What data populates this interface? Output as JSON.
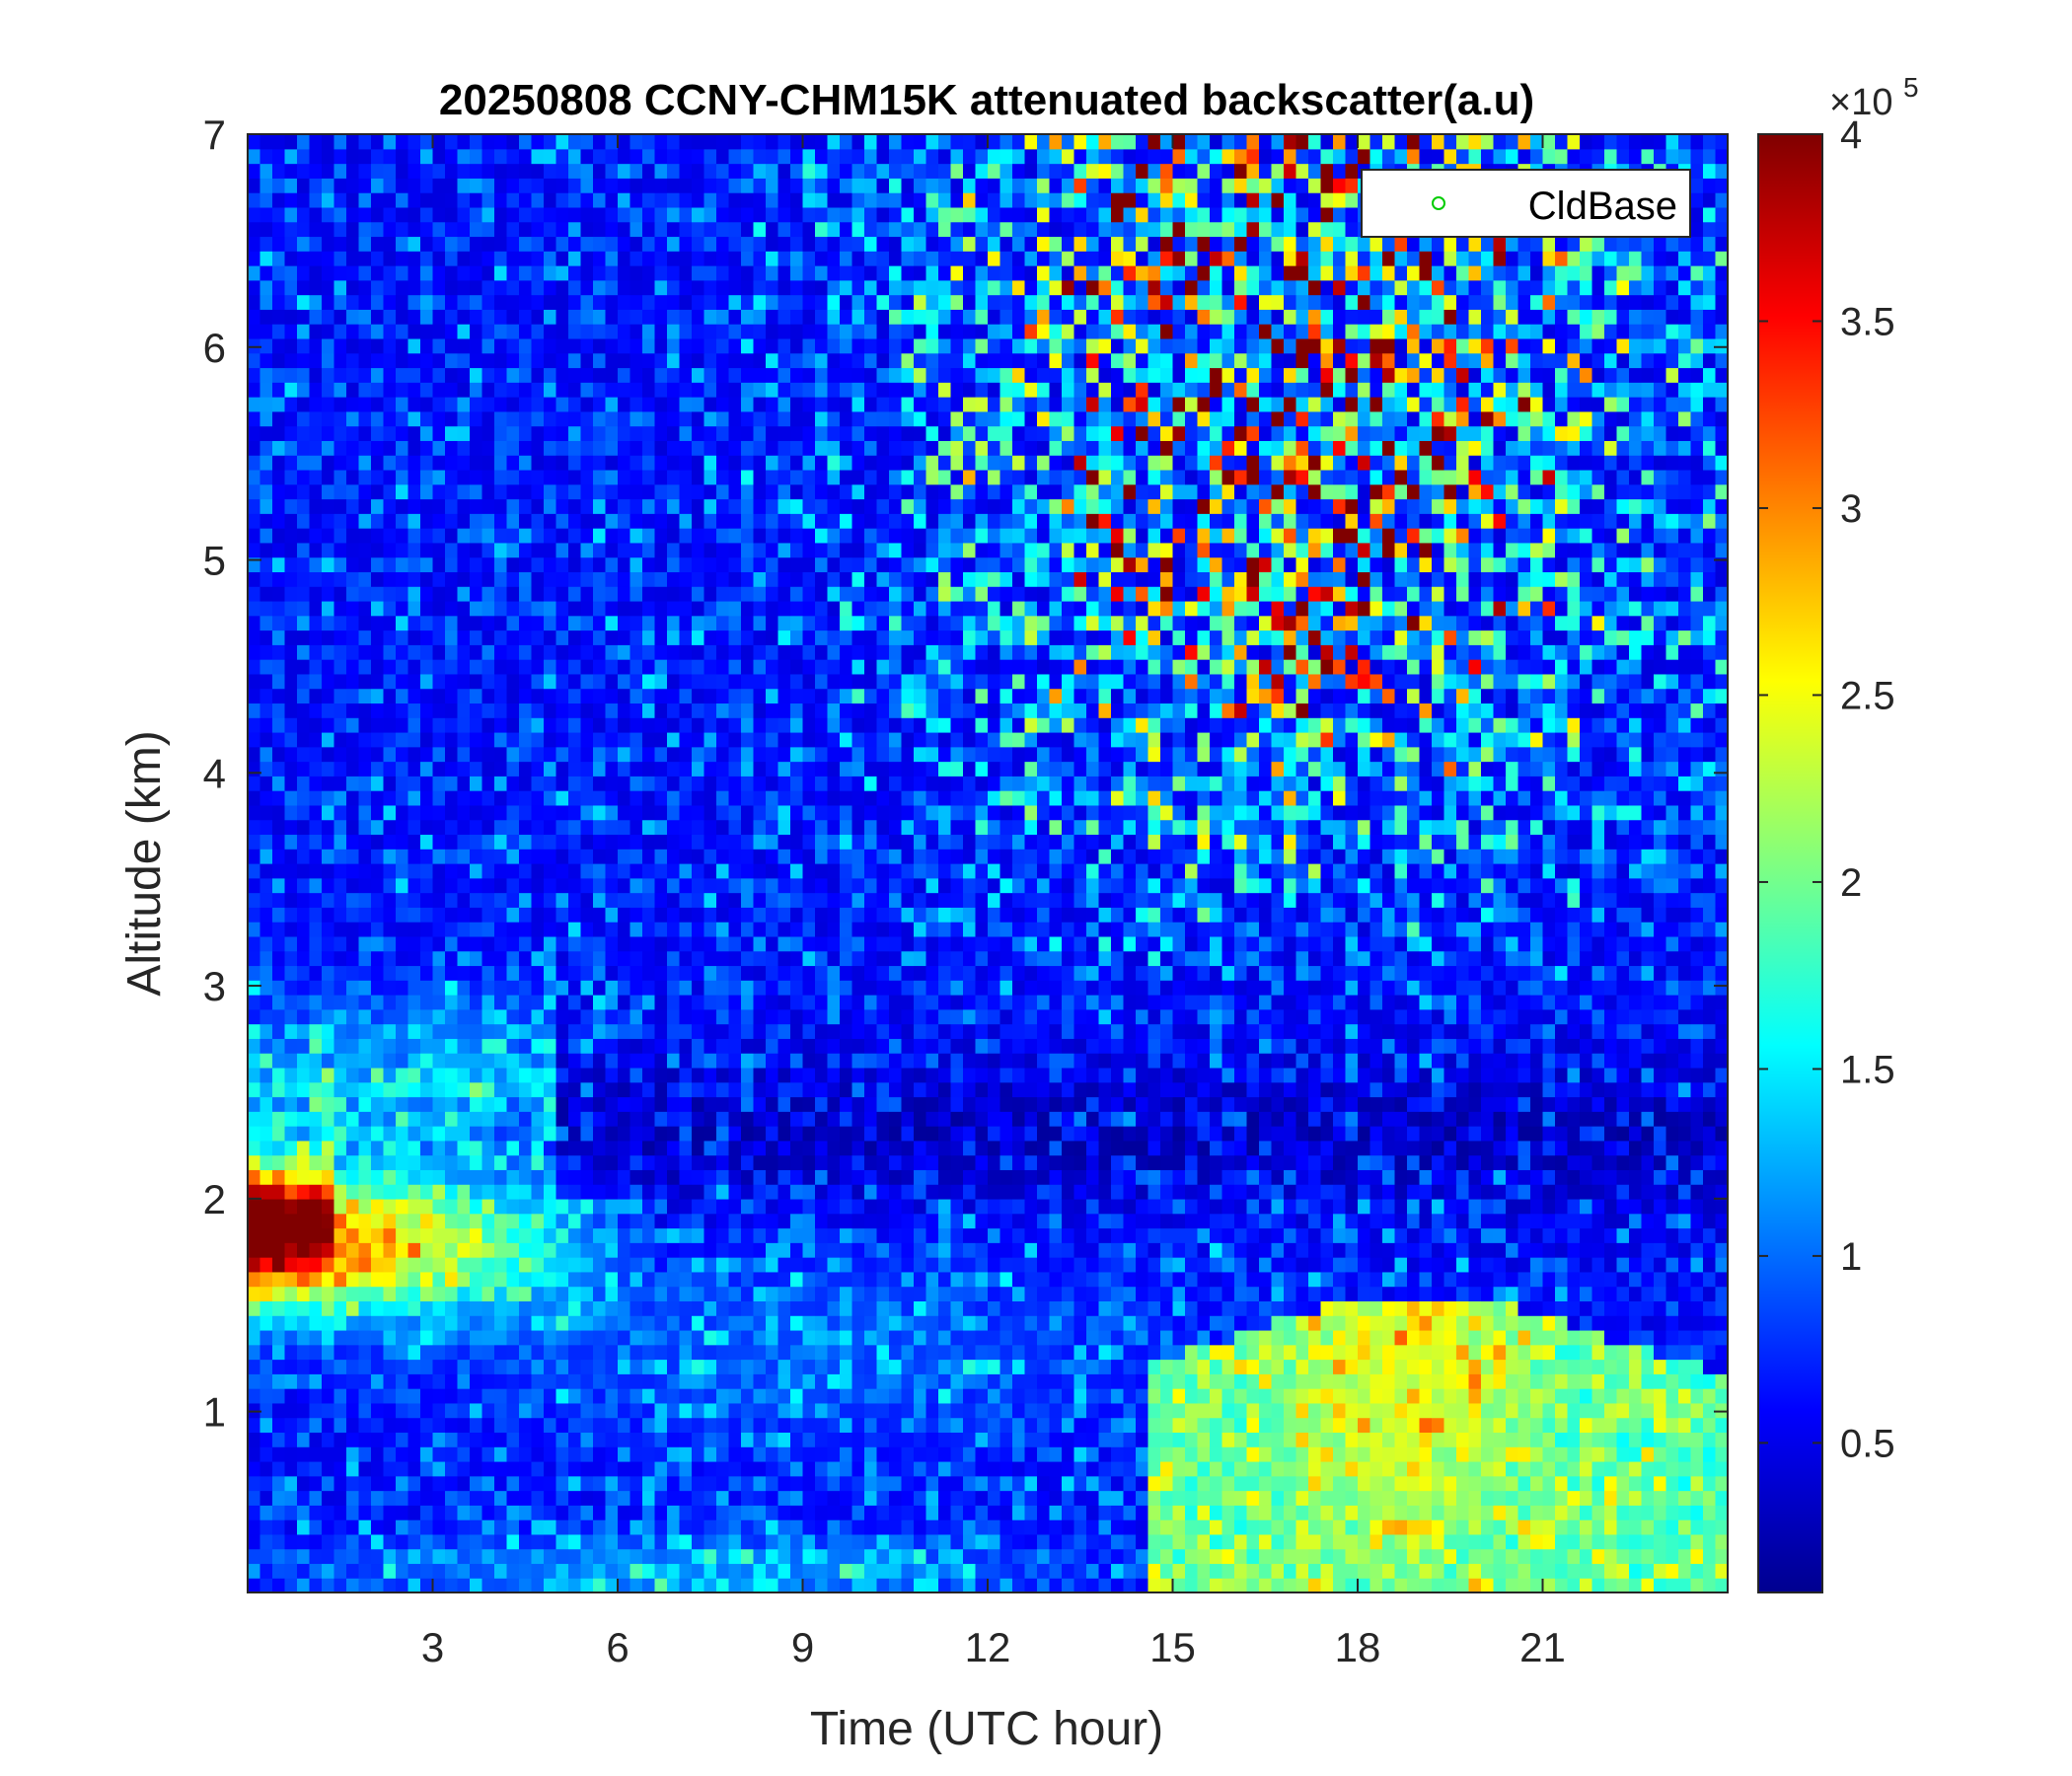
{
  "chart_data": {
    "type": "heatmap",
    "title": "20250808 CCNY-CHM15K attenuated backscatter(a.u)",
    "xlabel": "Time (UTC hour)",
    "ylabel": "Altitude (km)",
    "xlim": [
      0,
      24
    ],
    "ylim": [
      0.15,
      7
    ],
    "x_ticks": [
      3,
      6,
      9,
      12,
      15,
      18,
      21
    ],
    "y_ticks": [
      1,
      2,
      3,
      4,
      5,
      6,
      7
    ],
    "colormap": "jet",
    "colorbar": {
      "clim": [
        10000,
        400000
      ],
      "ticks": [
        0.5,
        1,
        1.5,
        2,
        2.5,
        3,
        3.5,
        4
      ],
      "exponent_label": "×10",
      "exponent_power": "5"
    },
    "legend": {
      "location": "top-right",
      "entries": [
        {
          "label": "CldBase",
          "marker": "circle",
          "color": "#00cc00"
        }
      ]
    },
    "grid": false,
    "features": [
      {
        "name": "elevated aerosol/cloud layer",
        "x_range": [
          0,
          6.3
        ],
        "altitude_range": [
          1.4,
          2.2
        ],
        "peak_value": 400000
      },
      {
        "name": "residual layer",
        "x_range": [
          0,
          5
        ],
        "altitude_range": [
          2.2,
          3.0
        ],
        "approx_value": 130000
      },
      {
        "name": "daytime boundary layer",
        "x_range": [
          15.5,
          24
        ],
        "altitude_range": [
          0.15,
          1.6
        ],
        "approx_value": 170000
      },
      {
        "name": "noisy upper signal",
        "x_range": [
          11,
          22
        ],
        "altitude_range": [
          3.5,
          7
        ],
        "approx_value": 250000
      }
    ]
  },
  "colors": {
    "axis": "#262626",
    "legend_marker": "#00cc00"
  }
}
